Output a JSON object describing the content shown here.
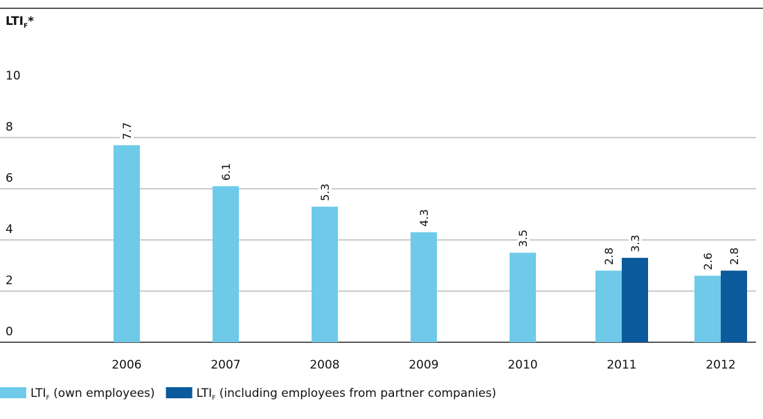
{
  "chart_data": {
    "type": "bar",
    "title": "LTIF*",
    "categories": [
      "2006",
      "2007",
      "2008",
      "2009",
      "2010",
      "2011",
      "2012"
    ],
    "series": [
      {
        "name": "LTIF (own employees)",
        "color": "#6ecae8",
        "values": [
          7.7,
          6.1,
          5.3,
          4.3,
          3.5,
          2.8,
          2.6
        ]
      },
      {
        "name": "LTIF (including employees from partner companies)",
        "color": "#0a5a9c",
        "values": [
          null,
          null,
          null,
          null,
          null,
          3.3,
          2.8
        ]
      }
    ],
    "ylim": [
      0,
      10
    ],
    "yticks": [
      0,
      2,
      4,
      6,
      8,
      10
    ],
    "grid": true,
    "legend": "bottom-left"
  }
}
